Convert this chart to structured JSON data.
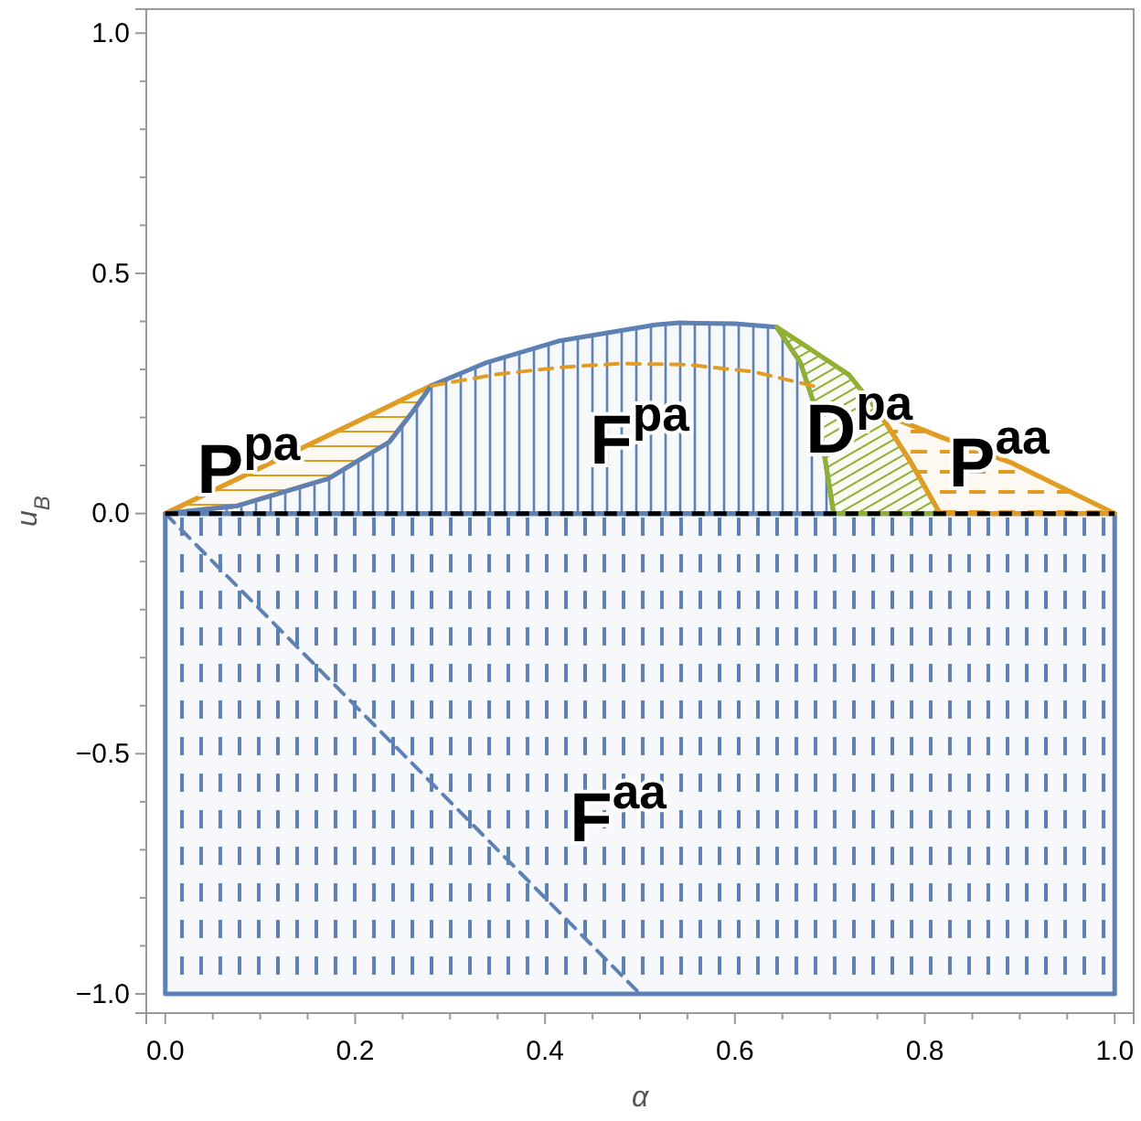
{
  "chart_data": {
    "type": "area",
    "xlabel": "α",
    "ylabel": "u$_{B}$",
    "xlim": [
      -0.02,
      1.02
    ],
    "ylim": [
      -1.04,
      1.05
    ],
    "xticks": [
      {
        "value": 0,
        "label": "0.0"
      },
      {
        "value": 0.05,
        "label": null
      },
      {
        "value": 0.1,
        "label": null
      },
      {
        "value": 0.15,
        "label": null
      },
      {
        "value": 0.2,
        "label": "0.2"
      },
      {
        "value": 0.25,
        "label": null
      },
      {
        "value": 0.3,
        "label": null
      },
      {
        "value": 0.35,
        "label": null
      },
      {
        "value": 0.4,
        "label": "0.4"
      },
      {
        "value": 0.45,
        "label": null
      },
      {
        "value": 0.5,
        "label": null
      },
      {
        "value": 0.55,
        "label": null
      },
      {
        "value": 0.6,
        "label": "0.6"
      },
      {
        "value": 0.65,
        "label": null
      },
      {
        "value": 0.7,
        "label": null
      },
      {
        "value": 0.75,
        "label": null
      },
      {
        "value": 0.8,
        "label": "0.8"
      },
      {
        "value": 0.85,
        "label": null
      },
      {
        "value": 0.9,
        "label": null
      },
      {
        "value": 0.95,
        "label": null
      },
      {
        "value": 1,
        "label": "1.0"
      }
    ],
    "yticks": [
      {
        "value": -1,
        "label": "−1.0"
      },
      {
        "value": -0.9,
        "label": null
      },
      {
        "value": -0.8,
        "label": null
      },
      {
        "value": -0.7,
        "label": null
      },
      {
        "value": -0.6,
        "label": null
      },
      {
        "value": -0.5,
        "label": "−0.5"
      },
      {
        "value": -0.4,
        "label": null
      },
      {
        "value": -0.3,
        "label": null
      },
      {
        "value": -0.2,
        "label": null
      },
      {
        "value": -0.1,
        "label": null
      },
      {
        "value": 0,
        "label": "0.0"
      },
      {
        "value": 0.1,
        "label": null
      },
      {
        "value": 0.2,
        "label": null
      },
      {
        "value": 0.3,
        "label": null
      },
      {
        "value": 0.4,
        "label": null
      },
      {
        "value": 0.5,
        "label": "0.5"
      },
      {
        "value": 0.6,
        "label": null
      },
      {
        "value": 0.7,
        "label": null
      },
      {
        "value": 0.8,
        "label": null
      },
      {
        "value": 0.9,
        "label": null
      },
      {
        "value": 1,
        "label": "1.0"
      }
    ],
    "grid": false,
    "series": [
      {
        "name": "F$^{aa}$",
        "color": "#5e81b5",
        "x": [
          0,
          1
        ],
        "values": [
          -1,
          -1
        ]
      },
      {
        "type": "line",
        "name": "P$^{pa}$",
        "color": "#e19c24",
        "x": [
          0,
          0.076,
          0.172,
          0.236,
          0.261,
          0.28
        ],
        "values": [
          0,
          0.072,
          0.163,
          0.224,
          0.248,
          0.266
        ],
        "lower": [
          0,
          0.016,
          0.073,
          0.149,
          0.213,
          0.266
        ],
        "upper": [
          0,
          0.072,
          0.163,
          0.224,
          0.248,
          0.266
        ]
      },
      {
        "name": "F$^{pa}$",
        "color": "#5e81b5",
        "x": [
          0,
          0.076,
          0.172,
          0.236,
          0.261,
          0.28,
          0.338,
          0.414,
          0.516,
          0.541,
          0.6,
          0.644,
          0.669,
          0.688,
          0.704
        ],
        "values": [
          0,
          0.016,
          0.073,
          0.149,
          0.213,
          0.266,
          0.314,
          0.359,
          0.393,
          0.397,
          0.395,
          0.388,
          0.314,
          0.2,
          0
        ]
      },
      {
        "type": "line",
        "name": "D$^{pa}$",
        "color": "#8fb032",
        "x": [
          0.644,
          0.669,
          0.688,
          0.704,
          0.72,
          0.752,
          0.784,
          0.816
        ],
        "values": [
          0.388,
          0.356,
          0.331,
          0.31,
          0.289,
          0.21,
          0.111,
          0
        ],
        "lower": [
          0.388,
          0.314,
          0.2,
          0,
          0,
          0,
          0,
          0
        ],
        "upper": [
          0.388,
          0.356,
          0.331,
          0.31,
          0.289,
          0.21,
          0.111,
          0
        ]
      },
      {
        "type": "line",
        "name": "P$^{aa}$",
        "color": "#e19c24",
        "x": [
          0.752,
          0.784,
          0.816,
          0.892,
          1
        ],
        "values": [
          0.21,
          0.185,
          0.16,
          0.105,
          0
        ],
        "lower": [
          0.21,
          0.111,
          0,
          0,
          0
        ],
        "upper": [
          0.21,
          0.185,
          0.16,
          0.105,
          0
        ]
      },
      {
        "type": "line",
        "color": "#e19c24",
        "line_style": "dashed",
        "x": [
          0.28,
          0.35,
          0.42,
          0.478,
          0.55,
          0.62,
          0.688
        ],
        "values": [
          0.266,
          0.29,
          0.305,
          0.312,
          0.31,
          0.295,
          0.263
        ]
      },
      {
        "type": "line",
        "color": "#5e81b5",
        "line_style": "dashed",
        "x": [
          0,
          0.5
        ],
        "values": [
          0,
          -1
        ]
      }
    ],
    "ref_lines": [
      {
        "axis": "y",
        "value": 0,
        "color": "#000000",
        "line_style": "dashed"
      }
    ]
  }
}
